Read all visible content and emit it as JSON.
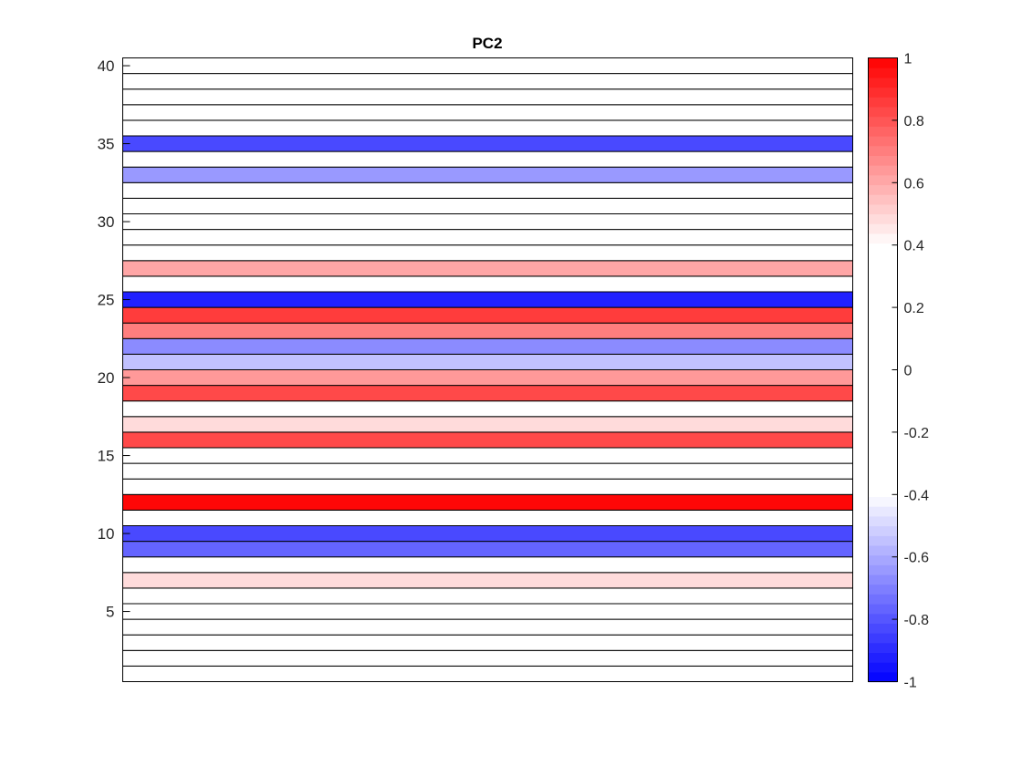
{
  "chart_data": {
    "type": "heatmap",
    "title": "PC2",
    "xlabel": "",
    "ylabel": "",
    "rows": [
      1,
      2,
      3,
      4,
      5,
      6,
      7,
      8,
      9,
      10,
      11,
      12,
      13,
      14,
      15,
      16,
      17,
      18,
      19,
      20,
      21,
      22,
      23,
      24,
      25,
      26,
      27,
      28,
      29,
      30,
      31,
      32,
      33,
      34,
      35,
      36,
      37,
      38,
      39,
      40
    ],
    "values": [
      0.1,
      0.0,
      -0.1,
      0.2,
      0.1,
      -0.2,
      0.47,
      0.1,
      -0.77,
      -0.82,
      0.05,
      0.98,
      0.1,
      0.0,
      -0.1,
      0.83,
      0.49,
      0.15,
      0.82,
      0.63,
      -0.55,
      -0.67,
      0.7,
      0.87,
      -0.92,
      0.1,
      0.62,
      0.2,
      -0.1,
      0.0,
      0.1,
      0.2,
      -0.63,
      0.1,
      -0.82,
      0.1,
      -0.2,
      0.0,
      0.1,
      0.2
    ],
    "ylim": [
      0.5,
      40.5
    ],
    "yticks": [
      5,
      10,
      15,
      20,
      25,
      30,
      35,
      40
    ],
    "colorbar": {
      "range": [
        -1,
        1
      ],
      "ticks": [
        "-1",
        "-0.8",
        "-0.6",
        "-0.4",
        "-0.2",
        "0",
        "0.2",
        "0.4",
        "0.6",
        "0.8",
        "1"
      ],
      "low_color": "#0000ff",
      "mid_color": "#ffffff",
      "high_color": "#ff0000",
      "neutral_band": [
        -0.4,
        0.4
      ],
      "levels": 64
    }
  }
}
